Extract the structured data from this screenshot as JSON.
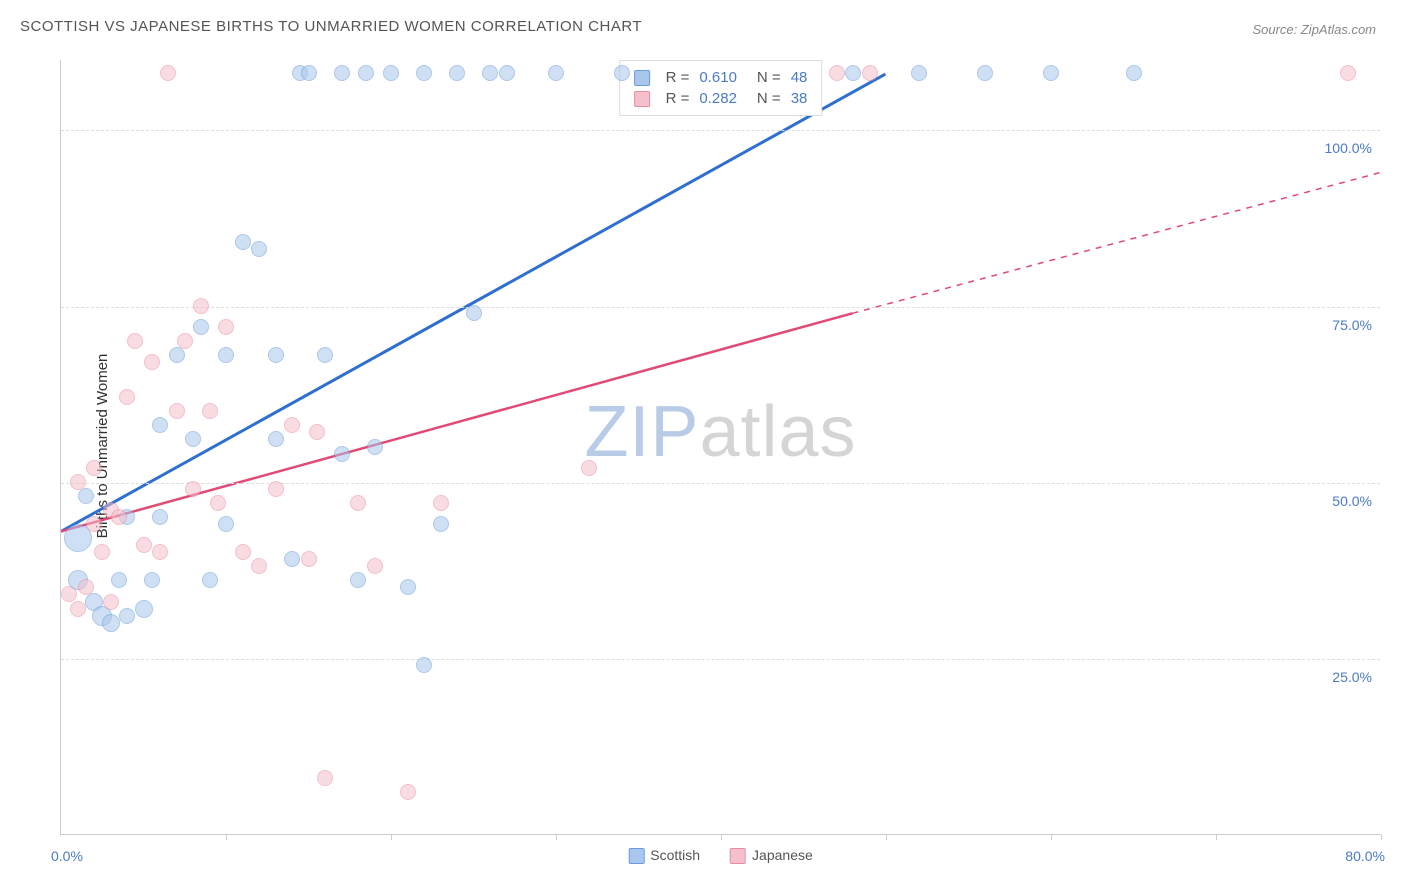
{
  "title": "SCOTTISH VS JAPANESE BIRTHS TO UNMARRIED WOMEN CORRELATION CHART",
  "source": "Source: ZipAtlas.com",
  "ylabel": "Births to Unmarried Women",
  "watermark_zip": "ZIP",
  "watermark_atlas": "atlas",
  "chart": {
    "type": "scatter",
    "background_color": "#ffffff",
    "grid_color": "#dddddd",
    "axis_color": "#cccccc",
    "label_color": "#4a7bc4",
    "text_color": "#555555",
    "xlim": [
      0,
      80
    ],
    "ylim": [
      0,
      110
    ],
    "x_ticks": [
      0,
      10,
      20,
      30,
      40,
      50,
      60,
      70,
      80
    ],
    "y_gridlines": [
      25,
      50,
      75,
      100
    ],
    "y_tick_labels": [
      "25.0%",
      "50.0%",
      "75.0%",
      "100.0%"
    ],
    "x_min_label": "0.0%",
    "x_max_label": "80.0%",
    "marker_opacity": 0.55,
    "marker_border_width": 1,
    "series": [
      {
        "name": "Scottish",
        "fill_color": "#a9c7ec",
        "border_color": "#6a9bd8",
        "trend_color": "#2e6fd0",
        "trend_width": 3,
        "R": "0.610",
        "N": "48",
        "trend": {
          "x1": 0,
          "y1": 43,
          "x2": 50,
          "y2": 108,
          "dashed_from_x": 80
        },
        "points": [
          {
            "x": 1,
            "y": 42,
            "r": 14
          },
          {
            "x": 1,
            "y": 36,
            "r": 10
          },
          {
            "x": 1.5,
            "y": 48,
            "r": 8
          },
          {
            "x": 2,
            "y": 33,
            "r": 9
          },
          {
            "x": 2.5,
            "y": 31,
            "r": 10
          },
          {
            "x": 3,
            "y": 30,
            "r": 9
          },
          {
            "x": 3.5,
            "y": 36,
            "r": 8
          },
          {
            "x": 4,
            "y": 31,
            "r": 8
          },
          {
            "x": 4,
            "y": 45,
            "r": 8
          },
          {
            "x": 5,
            "y": 32,
            "r": 9
          },
          {
            "x": 5.5,
            "y": 36,
            "r": 8
          },
          {
            "x": 6,
            "y": 58,
            "r": 8
          },
          {
            "x": 6,
            "y": 45,
            "r": 8
          },
          {
            "x": 7,
            "y": 68,
            "r": 8
          },
          {
            "x": 8,
            "y": 56,
            "r": 8
          },
          {
            "x": 8.5,
            "y": 72,
            "r": 8
          },
          {
            "x": 9,
            "y": 36,
            "r": 8
          },
          {
            "x": 10,
            "y": 68,
            "r": 8
          },
          {
            "x": 10,
            "y": 44,
            "r": 8
          },
          {
            "x": 11,
            "y": 84,
            "r": 8
          },
          {
            "x": 12,
            "y": 83,
            "r": 8
          },
          {
            "x": 13,
            "y": 56,
            "r": 8
          },
          {
            "x": 13,
            "y": 68,
            "r": 8
          },
          {
            "x": 14,
            "y": 39,
            "r": 8
          },
          {
            "x": 14.5,
            "y": 108,
            "r": 8
          },
          {
            "x": 15,
            "y": 108,
            "r": 8
          },
          {
            "x": 16,
            "y": 68,
            "r": 8
          },
          {
            "x": 17,
            "y": 54,
            "r": 8
          },
          {
            "x": 17,
            "y": 108,
            "r": 8
          },
          {
            "x": 18,
            "y": 36,
            "r": 8
          },
          {
            "x": 18.5,
            "y": 108,
            "r": 8
          },
          {
            "x": 19,
            "y": 55,
            "r": 8
          },
          {
            "x": 20,
            "y": 108,
            "r": 8
          },
          {
            "x": 21,
            "y": 35,
            "r": 8
          },
          {
            "x": 22,
            "y": 24,
            "r": 8
          },
          {
            "x": 22,
            "y": 108,
            "r": 8
          },
          {
            "x": 23,
            "y": 44,
            "r": 8
          },
          {
            "x": 24,
            "y": 108,
            "r": 8
          },
          {
            "x": 25,
            "y": 74,
            "r": 8
          },
          {
            "x": 26,
            "y": 108,
            "r": 8
          },
          {
            "x": 27,
            "y": 108,
            "r": 8
          },
          {
            "x": 30,
            "y": 108,
            "r": 8
          },
          {
            "x": 34,
            "y": 108,
            "r": 8
          },
          {
            "x": 52,
            "y": 108,
            "r": 8
          },
          {
            "x": 56,
            "y": 108,
            "r": 8
          },
          {
            "x": 60,
            "y": 108,
            "r": 8
          },
          {
            "x": 65,
            "y": 108,
            "r": 8
          },
          {
            "x": 48,
            "y": 108,
            "r": 8
          }
        ]
      },
      {
        "name": "Japanese",
        "fill_color": "#f4c0cc",
        "border_color": "#e88ba3",
        "trend_color": "#e14a74",
        "trend_width": 2.5,
        "R": "0.282",
        "N": "38",
        "trend": {
          "x1": 0,
          "y1": 43,
          "x2": 48,
          "y2": 74,
          "dashed_from_x": 48,
          "dash_x2": 80,
          "dash_y2": 94
        },
        "points": [
          {
            "x": 0.5,
            "y": 34,
            "r": 8
          },
          {
            "x": 1,
            "y": 32,
            "r": 8
          },
          {
            "x": 1,
            "y": 50,
            "r": 8
          },
          {
            "x": 1.5,
            "y": 35,
            "r": 8
          },
          {
            "x": 2,
            "y": 44,
            "r": 8
          },
          {
            "x": 2,
            "y": 52,
            "r": 8
          },
          {
            "x": 2.5,
            "y": 40,
            "r": 8
          },
          {
            "x": 3,
            "y": 46,
            "r": 8
          },
          {
            "x": 3,
            "y": 33,
            "r": 8
          },
          {
            "x": 3.5,
            "y": 45,
            "r": 8
          },
          {
            "x": 4,
            "y": 62,
            "r": 8
          },
          {
            "x": 4.5,
            "y": 70,
            "r": 8
          },
          {
            "x": 5,
            "y": 41,
            "r": 8
          },
          {
            "x": 5.5,
            "y": 67,
            "r": 8
          },
          {
            "x": 6,
            "y": 40,
            "r": 8
          },
          {
            "x": 6.5,
            "y": 108,
            "r": 8
          },
          {
            "x": 7,
            "y": 60,
            "r": 8
          },
          {
            "x": 7.5,
            "y": 70,
            "r": 8
          },
          {
            "x": 8,
            "y": 49,
            "r": 8
          },
          {
            "x": 8.5,
            "y": 75,
            "r": 8
          },
          {
            "x": 9,
            "y": 60,
            "r": 8
          },
          {
            "x": 9.5,
            "y": 47,
            "r": 8
          },
          {
            "x": 10,
            "y": 72,
            "r": 8
          },
          {
            "x": 11,
            "y": 40,
            "r": 8
          },
          {
            "x": 12,
            "y": 38,
            "r": 8
          },
          {
            "x": 13,
            "y": 49,
            "r": 8
          },
          {
            "x": 14,
            "y": 58,
            "r": 8
          },
          {
            "x": 15,
            "y": 39,
            "r": 8
          },
          {
            "x": 15.5,
            "y": 57,
            "r": 8
          },
          {
            "x": 16,
            "y": 8,
            "r": 8
          },
          {
            "x": 18,
            "y": 47,
            "r": 8
          },
          {
            "x": 19,
            "y": 38,
            "r": 8
          },
          {
            "x": 21,
            "y": 6,
            "r": 8
          },
          {
            "x": 23,
            "y": 47,
            "r": 8
          },
          {
            "x": 32,
            "y": 52,
            "r": 8
          },
          {
            "x": 47,
            "y": 108,
            "r": 8
          },
          {
            "x": 49,
            "y": 108,
            "r": 8
          },
          {
            "x": 78,
            "y": 108,
            "r": 8
          }
        ]
      }
    ]
  }
}
